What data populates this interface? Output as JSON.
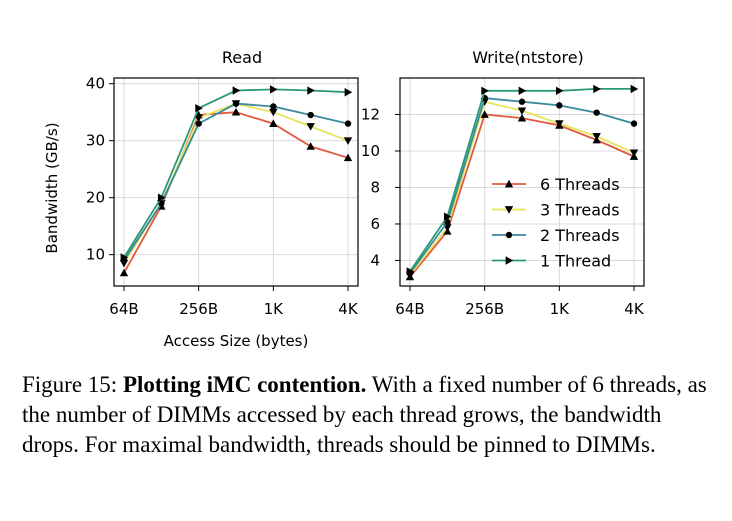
{
  "chart_data": [
    {
      "type": "line",
      "title": "Read",
      "xlabel": "Access Size (bytes)",
      "ylabel": "Bandwidth (GB/s)",
      "x_ticks": [
        "64B",
        "256B",
        "1K",
        "4K"
      ],
      "x": [
        64,
        128,
        256,
        512,
        1024,
        2048,
        4096
      ],
      "x_scale": "log2",
      "y_ticks": [
        10,
        20,
        30,
        40
      ],
      "ylim": [
        4.5,
        41
      ],
      "grid": true,
      "series": [
        {
          "name": "6 Threads",
          "marker": "triangle-up",
          "values": [
            6.8,
            18.5,
            34.5,
            35.0,
            33.0,
            29.0,
            27.0
          ]
        },
        {
          "name": "3 Threads",
          "marker": "triangle-down",
          "values": [
            8.5,
            19.0,
            34.0,
            36.5,
            35.0,
            32.5,
            30.0
          ]
        },
        {
          "name": "2 Threads",
          "marker": "circle",
          "values": [
            9.0,
            19.0,
            33.0,
            36.5,
            36.0,
            34.5,
            33.0
          ]
        },
        {
          "name": "1 Thread",
          "marker": "triangle-right",
          "values": [
            9.5,
            20.0,
            35.7,
            38.8,
            39.0,
            38.8,
            38.5
          ]
        }
      ]
    },
    {
      "type": "line",
      "title": "Write(ntstore)",
      "xlabel": "",
      "ylabel": "",
      "x_ticks": [
        "64B",
        "256B",
        "1K",
        "4K"
      ],
      "x": [
        64,
        128,
        256,
        512,
        1024,
        2048,
        4096
      ],
      "x_scale": "log2",
      "y_ticks": [
        4,
        6,
        8,
        10,
        12
      ],
      "ylim": [
        2.6,
        14.0
      ],
      "grid": true,
      "legend": "right",
      "series": [
        {
          "name": "6 Threads",
          "marker": "triangle-up",
          "values": [
            3.1,
            5.6,
            12.0,
            11.8,
            11.4,
            10.6,
            9.7
          ]
        },
        {
          "name": "3 Threads",
          "marker": "triangle-down",
          "values": [
            3.2,
            5.8,
            12.7,
            12.2,
            11.5,
            10.8,
            9.9
          ]
        },
        {
          "name": "2 Threads",
          "marker": "circle",
          "values": [
            3.3,
            6.1,
            12.9,
            12.7,
            12.5,
            12.1,
            11.5
          ]
        },
        {
          "name": "1 Thread",
          "marker": "triangle-right",
          "values": [
            3.4,
            6.4,
            13.3,
            13.3,
            13.3,
            13.4,
            13.4
          ]
        }
      ]
    }
  ],
  "series_colors": [
    "#e05a3e",
    "#e6e45a",
    "#3a8a9e",
    "#2a9a76"
  ],
  "caption": {
    "label": "Figure 15:",
    "bold": "Plotting iMC contention.",
    "text": "With a fixed number of 6 threads, as the number of DIMMs accessed by each thread grows, the bandwidth drops. For maximal bandwidth, threads should be pinned to DIMMs."
  }
}
